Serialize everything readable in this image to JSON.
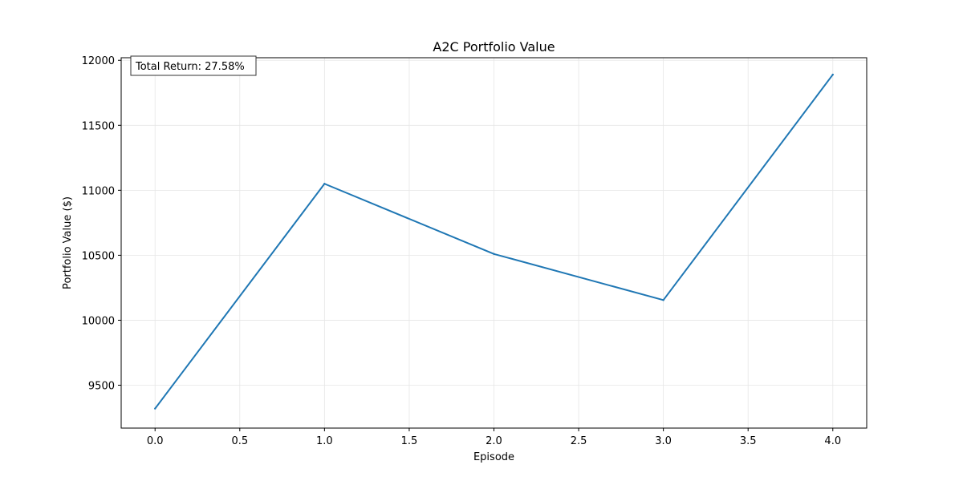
{
  "chart_data": {
    "type": "line",
    "title": "A2C Portfolio Value",
    "xlabel": "Episode",
    "ylabel": "Portfolio Value ($)",
    "x": [
      0,
      1,
      2,
      3,
      4
    ],
    "series": [
      {
        "values": [
          9320,
          11050,
          10510,
          10155,
          11890
        ],
        "color": "#1f77b4"
      }
    ],
    "xlim": [
      -0.2,
      4.2
    ],
    "ylim": [
      9170,
      12020
    ],
    "xticks": [
      0.0,
      0.5,
      1.0,
      1.5,
      2.0,
      2.5,
      3.0,
      3.5,
      4.0
    ],
    "xtick_labels": [
      "0.0",
      "0.5",
      "1.0",
      "1.5",
      "2.0",
      "2.5",
      "3.0",
      "3.5",
      "4.0"
    ],
    "yticks": [
      9500,
      10000,
      10500,
      11000,
      11500,
      12000
    ],
    "ytick_labels": [
      "9500",
      "10000",
      "10500",
      "11000",
      "11500",
      "12000"
    ],
    "grid": true,
    "annotation": {
      "text": "Total Return: 27.58%",
      "placement": "top-left"
    }
  }
}
